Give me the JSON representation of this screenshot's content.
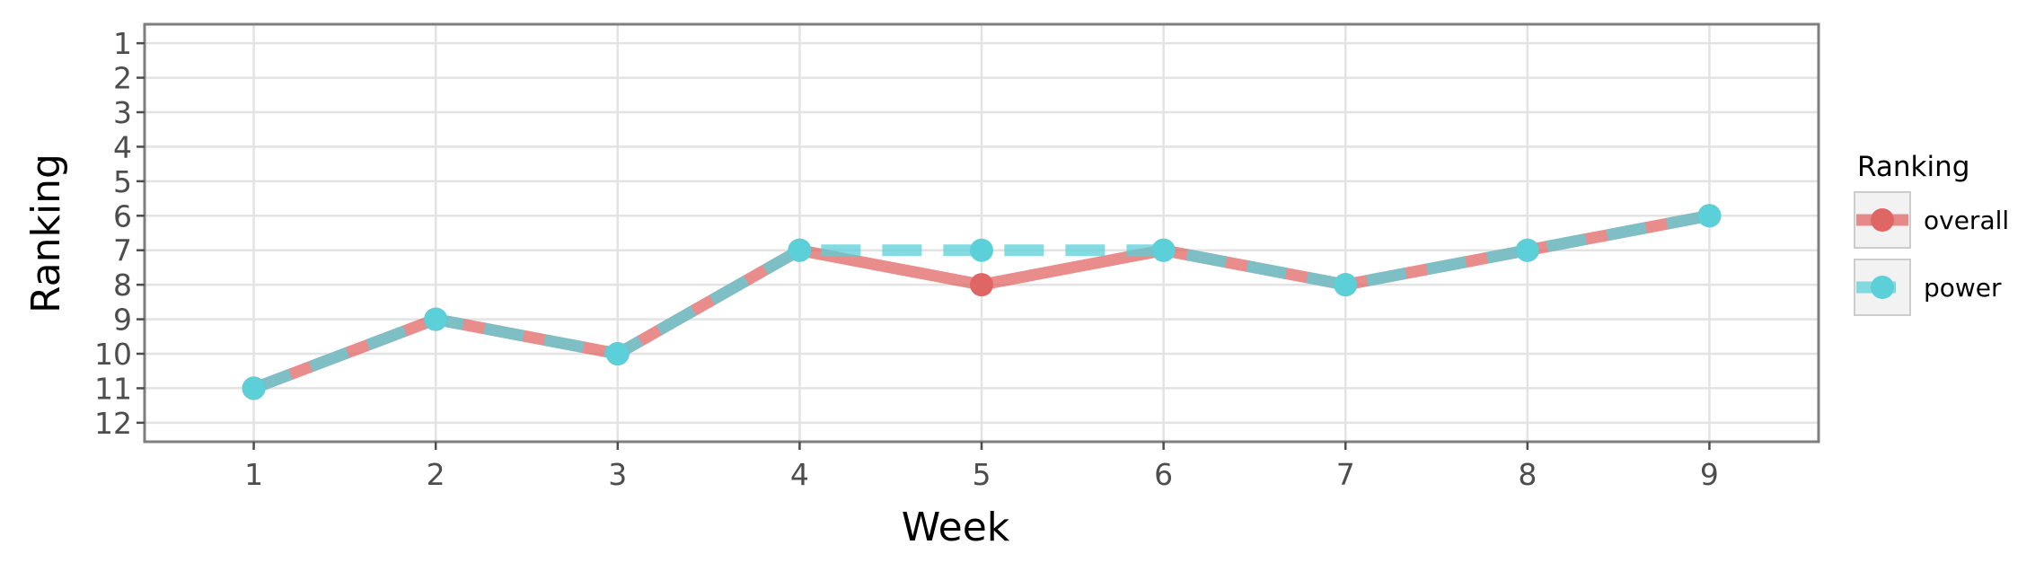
{
  "chart_data": {
    "type": "line",
    "title": "",
    "xlabel": "Week",
    "ylabel": "Ranking",
    "x": [
      1,
      2,
      3,
      4,
      5,
      6,
      7,
      8,
      9
    ],
    "xlim": [
      0.4,
      9.6
    ],
    "ylim": [
      12.55,
      0.45
    ],
    "y_reversed": true,
    "xticks": [
      1,
      2,
      3,
      4,
      5,
      6,
      7,
      8,
      9
    ],
    "yticks": [
      1,
      2,
      3,
      4,
      5,
      6,
      7,
      8,
      9,
      10,
      11,
      12
    ],
    "grid": true,
    "legend_title": "Ranking",
    "legend_position": "right",
    "series": [
      {
        "name": "overall",
        "color": "#e06666",
        "line_style": "solid",
        "values": [
          11,
          9,
          10,
          7,
          8,
          7,
          8,
          7,
          6
        ]
      },
      {
        "name": "power",
        "color": "#5bd0d8",
        "line_style": "dashed",
        "values": [
          11,
          9,
          10,
          7,
          7,
          7,
          8,
          7,
          6
        ]
      }
    ]
  }
}
